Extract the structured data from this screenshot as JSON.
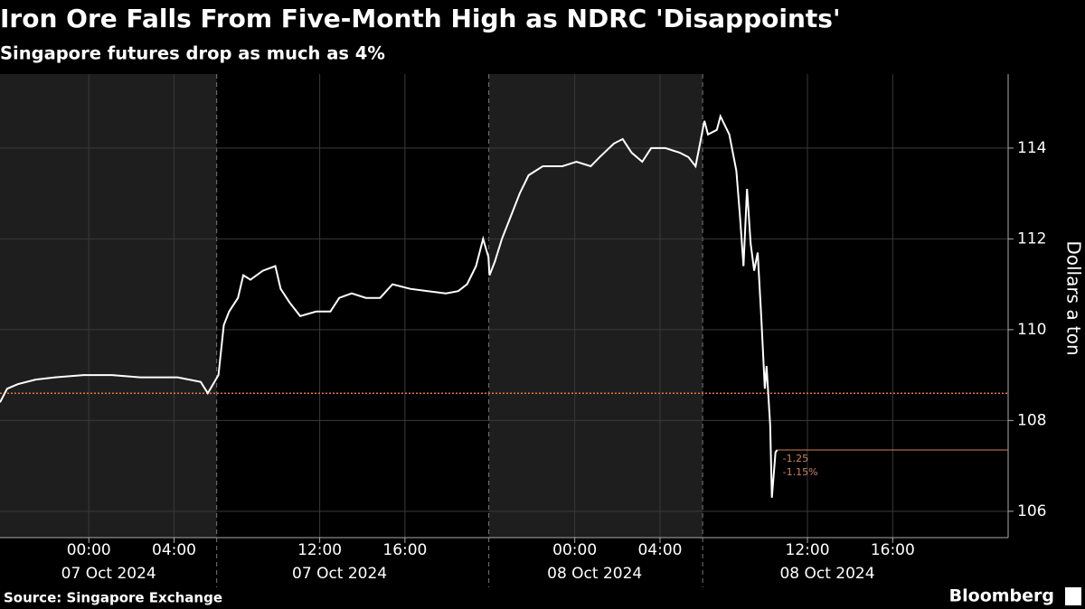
{
  "chart_data": {
    "type": "line",
    "title": "Iron Ore Falls From Five-Month High as NDRC 'Disappoints'",
    "subtitle": "Singapore futures drop as much as 4%",
    "y_label": "Dollars a ton",
    "source": "Source: Singapore Exchange",
    "brand": "Bloomberg",
    "sessions": [
      [
        "2024-10-06T19:50",
        "2024-10-07T06:00"
      ],
      [
        "2024-10-07T07:10",
        "2024-10-07T19:56"
      ],
      [
        "2024-10-07T19:58",
        "2024-10-08T06:00"
      ],
      [
        "2024-10-08T07:05",
        "2024-10-08T21:25"
      ]
    ],
    "x": [
      "2024-10-06T19:50",
      "2024-10-06T20:10",
      "2024-10-06T20:40",
      "2024-10-06T21:30",
      "2024-10-06T22:25",
      "2024-10-06T23:45",
      "2024-10-07T01:05",
      "2024-10-07T02:25",
      "2024-10-07T04:10",
      "2024-10-07T05:15",
      "2024-10-07T05:35",
      "2024-10-07T07:15",
      "2024-10-07T07:30",
      "2024-10-07T07:45",
      "2024-10-07T08:10",
      "2024-10-07T08:25",
      "2024-10-07T08:45",
      "2024-10-07T09:20",
      "2024-10-07T09:55",
      "2024-10-07T10:10",
      "2024-10-07T10:35",
      "2024-10-07T11:05",
      "2024-10-07T11:50",
      "2024-10-07T12:30",
      "2024-10-07T12:55",
      "2024-10-07T13:30",
      "2024-10-07T14:10",
      "2024-10-07T14:50",
      "2024-10-07T15:25",
      "2024-10-07T16:15",
      "2024-10-07T17:05",
      "2024-10-07T17:55",
      "2024-10-07T18:30",
      "2024-10-07T18:55",
      "2024-10-07T19:20",
      "2024-10-07T19:40",
      "2024-10-07T19:55",
      "2024-10-07T20:00",
      "2024-10-07T20:15",
      "2024-10-07T20:35",
      "2024-10-07T21:00",
      "2024-10-07T21:25",
      "2024-10-07T21:50",
      "2024-10-07T22:30",
      "2024-10-07T23:25",
      "2024-10-08T00:05",
      "2024-10-08T00:45",
      "2024-10-08T01:10",
      "2024-10-08T01:50",
      "2024-10-08T02:15",
      "2024-10-08T02:40",
      "2024-10-08T03:10",
      "2024-10-08T03:35",
      "2024-10-08T04:15",
      "2024-10-08T04:55",
      "2024-10-08T05:20",
      "2024-10-08T05:40",
      "2024-10-08T07:10",
      "2024-10-08T07:20",
      "2024-10-08T07:45",
      "2024-10-08T07:55",
      "2024-10-08T08:20",
      "2024-10-08T08:40",
      "2024-10-08T08:50",
      "2024-10-08T09:00",
      "2024-10-08T09:10",
      "2024-10-08T09:20",
      "2024-10-08T09:30",
      "2024-10-08T09:40",
      "2024-10-08T09:50",
      "2024-10-08T10:00",
      "2024-10-08T10:05",
      "2024-10-08T10:15",
      "2024-10-08T10:20",
      "2024-10-08T10:30",
      "2024-10-08T10:35"
    ],
    "series": [
      {
        "color": "#ffffff",
        "values": [
          108.4,
          108.7,
          108.8,
          108.9,
          108.95,
          109.0,
          109.0,
          108.95,
          108.95,
          108.85,
          108.6,
          109.0,
          110.1,
          110.4,
          110.7,
          111.2,
          111.1,
          111.3,
          111.4,
          110.9,
          110.6,
          110.3,
          110.4,
          110.4,
          110.7,
          110.8,
          110.7,
          110.7,
          111.0,
          110.9,
          110.85,
          110.8,
          110.85,
          111.0,
          111.4,
          112.0,
          111.6,
          111.2,
          111.5,
          112.0,
          112.5,
          113.0,
          113.4,
          113.6,
          113.6,
          113.7,
          113.6,
          113.8,
          114.1,
          114.2,
          113.9,
          113.7,
          114.0,
          114.0,
          113.9,
          113.8,
          113.6,
          114.6,
          114.3,
          114.4,
          114.7,
          114.3,
          113.5,
          112.5,
          111.4,
          113.1,
          111.9,
          111.3,
          111.7,
          110.3,
          108.7,
          109.2,
          107.9,
          106.3,
          107.3,
          107.35
        ]
      }
    ],
    "reference_line": {
      "value": 108.6,
      "color": "#e07a3a"
    },
    "last_line_color": "#d08060",
    "annotations": [
      -1.25,
      {
        "value": -1.15,
        "label": "-1.15%"
      }
    ],
    "ylim": [
      105.42,
      115.63
    ],
    "yticks": [
      106,
      108,
      110,
      112,
      114
    ],
    "xticks": [
      {
        "value": "2024-10-07T00:00",
        "label": "00:00"
      },
      {
        "value": "2024-10-07T04:00",
        "label": "04:00"
      },
      {
        "value": "2024-10-07T12:00",
        "label": "12:00"
      },
      {
        "value": "2024-10-07T16:00",
        "label": "16:00"
      },
      {
        "value": "2024-10-08T00:00",
        "label": "00:00"
      },
      {
        "value": "2024-10-08T04:00",
        "label": "04:00"
      },
      {
        "value": "2024-10-08T12:00",
        "label": "12:00"
      },
      {
        "value": "2024-10-08T16:00",
        "label": "16:00"
      }
    ],
    "xtick_dates": [
      {
        "value": "2024-10-07T00:00",
        "label": "07 Oct 2024"
      },
      {
        "value": "2024-10-07T12:00",
        "label": "07 Oct 2024"
      },
      {
        "value": "2024-10-08T00:00",
        "label": "08 Oct 2024"
      },
      {
        "value": "2024-10-08T12:00",
        "label": "08 Oct 2024"
      }
    ],
    "grid": true
  }
}
